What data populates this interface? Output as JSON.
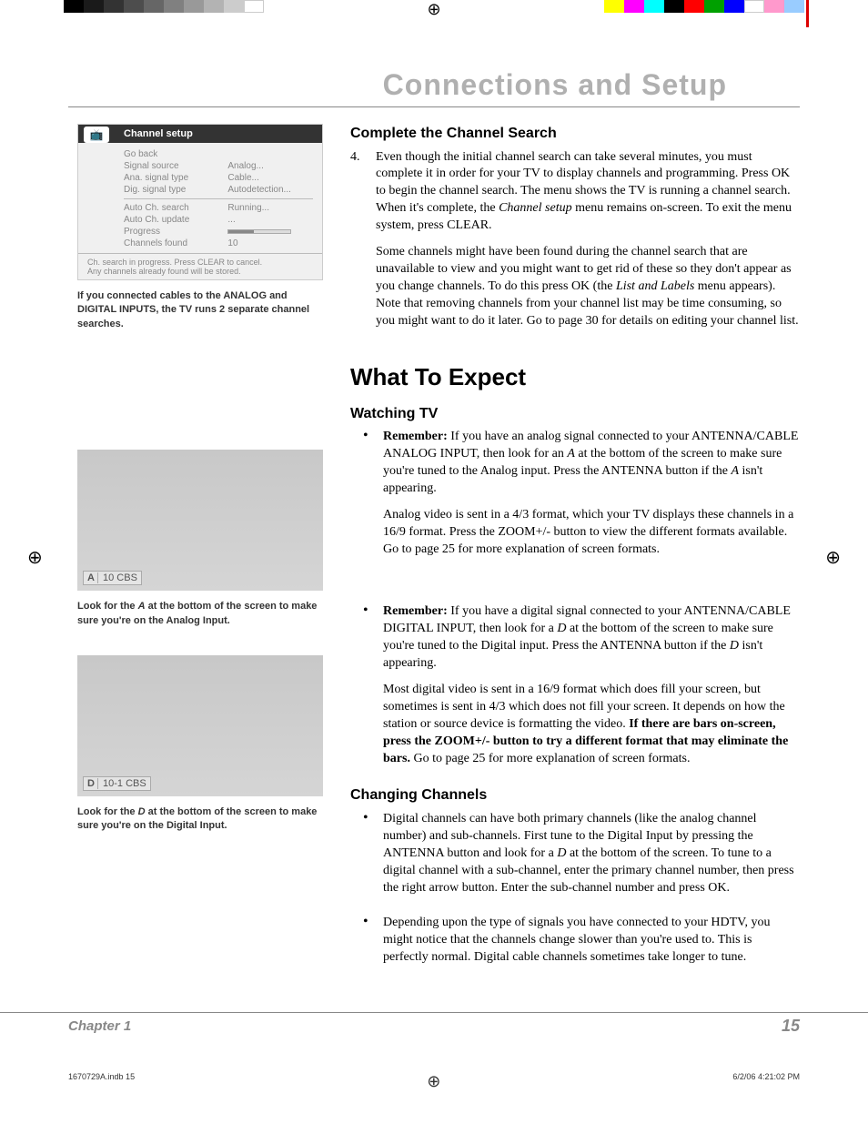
{
  "print_bars": {
    "left_colors": [
      "#000000",
      "#1a1a1a",
      "#333333",
      "#4d4d4d",
      "#666666",
      "#808080",
      "#999999",
      "#b3b3b3",
      "#cccccc",
      "#ffffff"
    ],
    "right_colors": [
      "#ffff00",
      "#ff00ff",
      "#00ffff",
      "#000000",
      "#ff0000",
      "#00a000",
      "#0000ff",
      "#ffffff",
      "#ff99cc",
      "#99ccff"
    ],
    "vert_bar_right": "#ff0000"
  },
  "header": {
    "title": "Connections and Setup"
  },
  "channel_setup": {
    "title": "Channel setup",
    "rows": [
      {
        "label": "Go back",
        "value": ""
      },
      {
        "label": "Signal source",
        "value": "Analog..."
      },
      {
        "label": "Ana. signal type",
        "value": "Cable..."
      },
      {
        "label": "Dig. signal type",
        "value": "Autodetection..."
      },
      {
        "label": "Auto Ch. search",
        "value": "Running...",
        "active": true
      },
      {
        "label": "Auto Ch. update",
        "value": "..."
      },
      {
        "label": "Progress",
        "value": "__progress__"
      },
      {
        "label": "Channels found",
        "value": "10"
      }
    ],
    "footer_line1": "Ch. search in progress. Press CLEAR to cancel.",
    "footer_line2": "Any channels already found will be stored."
  },
  "caption1": "If you connected cables to the ANALOG and DIGITAL INPUTS, the TV runs 2 separate channel searches.",
  "screen_a": {
    "indicator": "A",
    "label": "10 CBS"
  },
  "caption_a_pre": "Look for the ",
  "caption_a_mid": "A",
  "caption_a_post": " at the bottom of the screen to make sure you're on the Analog Input.",
  "screen_d": {
    "indicator": "D",
    "label": "10-1 CBS"
  },
  "caption_d_pre": "Look for the ",
  "caption_d_mid": "D",
  "caption_d_post": " at the bottom of the screen to make sure you're on the Digital Input.",
  "section1": {
    "heading": "Complete the Channel Search",
    "item_num": "4.",
    "p1a": "Even though the initial channel search can take several minutes, you must complete it in order for your TV to display channels and programming. Press OK to begin the channel search. The menu shows the TV is running a channel search. When it's complete, the ",
    "p1_it": "Channel setup",
    "p1b": " menu remains on-screen. To exit the menu system, press CLEAR.",
    "p2a": "Some channels might have been found during the channel search that are unavailable to view and you might want to get rid of these so they don't appear as you change channels. To do this press OK (the ",
    "p2_it": "List and Labels",
    "p2b": " menu appears). Note that removing channels from your channel list may be time consuming, so you might want to do it later. Go to page 30 for details on editing your channel list."
  },
  "section2": {
    "heading": "What To Expect",
    "sub1": "Watching TV",
    "b1_bold": "Remember:",
    "b1_p1a": " If you have an analog signal connected to your ANTENNA/CABLE ANALOG INPUT, then look for an ",
    "b1_p1_it1": "A",
    "b1_p1b": " at the bottom of the screen to make sure you're tuned to the Analog input. Press the ANTENNA button if the ",
    "b1_p1_it2": "A",
    "b1_p1c": " isn't appearing.",
    "b1_p2": "Analog video is sent in a 4/3 format, which your TV displays these channels in a 16/9 format. Press the ZOOM+/- button to view the different formats available. Go to page 25 for more explanation of screen formats.",
    "b2_bold": "Remember:",
    "b2_p1a": " If you have a digital signal connected to your ANTENNA/CABLE DIGITAL INPUT, then look for a ",
    "b2_p1_it1": "D",
    "b2_p1b": " at the bottom of the screen to make sure you're tuned to the Digital input. Press the ANTENNA button if the ",
    "b2_p1_it2": "D",
    "b2_p1c": " isn't appearing.",
    "b2_p2a": "Most digital video is sent in a 16/9 format which does fill your screen, but sometimes is sent in 4/3 which does not fill your screen. It depends on how the station or source device is formatting the video. ",
    "b2_p2_bold": "If there are bars on-screen, press the ZOOM+/- button to try a different format that may eliminate the bars.",
    "b2_p2b": " Go to page 25 for more explanation of screen formats.",
    "sub2": "Changing Channels",
    "c1a": "Digital channels can have both primary channels (like the analog channel number) and sub-channels. First tune to the Digital Input by pressing the ANTENNA button and look for a ",
    "c1_it": "D",
    "c1b": " at the bottom of the screen. To tune to a digital channel with a sub-channel, enter the primary channel number, then press the right arrow button. Enter the sub-channel number and press OK.",
    "c2": "Depending upon the type of signals you have connected to your HDTV, you might notice that the channels change slower than you're used to. This is perfectly normal. Digital cable channels sometimes take longer to tune."
  },
  "footer": {
    "chapter": "Chapter 1",
    "page": "15"
  },
  "docfoot": {
    "file": "1670729A.indb   15",
    "date": "6/2/06   4:21:02 PM"
  }
}
